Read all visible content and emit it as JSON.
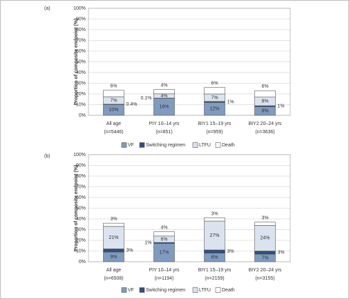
{
  "chart_data": [
    {
      "type": "bar",
      "stacked": true,
      "panel_label": "(a)",
      "ylabel": "Proportion of composite endpoint (%)",
      "categories": [
        [
          "All age",
          "(n=5446)"
        ],
        [
          "PIY 10–14 yrs",
          "(n=851)"
        ],
        [
          "BIY1 15–19 yrs",
          "(n=959)"
        ],
        [
          "BIY2  20–24 yrs",
          "(n=3636)"
        ]
      ],
      "series": [
        {
          "name": "VF",
          "color": "#7f9bbf",
          "values": [
            10,
            16,
            12,
            8
          ],
          "value_labels": [
            "10%",
            "16%",
            "12%",
            "8%"
          ]
        },
        {
          "name": "Switching regimen",
          "color": "#2f4f7f",
          "values": [
            0.4,
            0.1,
            1,
            1
          ],
          "value_labels": [
            "0.4%",
            "0.1%",
            "1%",
            "1%"
          ]
        },
        {
          "name": "LTFU",
          "color": "#dbe3ef",
          "values": [
            7,
            4,
            7,
            8
          ],
          "value_labels": [
            "7%",
            "4%",
            "7%",
            "8%"
          ]
        },
        {
          "name": "Death",
          "color": "#ffffff",
          "values": [
            6,
            4,
            6,
            6
          ],
          "value_labels": [
            "6%",
            "4%",
            "6%",
            "6%"
          ]
        }
      ],
      "ylim": [
        0,
        100
      ],
      "yticks": [
        {
          "value": 0,
          "label": "0%"
        },
        {
          "value": 10,
          "label": "10%"
        },
        {
          "value": 20,
          "label": "20%"
        },
        {
          "value": 30,
          "label": "30%"
        },
        {
          "value": 40,
          "label": "40%"
        },
        {
          "value": 50,
          "label": "50%"
        },
        {
          "value": 60,
          "label": "60%"
        },
        {
          "value": 70,
          "label": "70%"
        },
        {
          "value": 80,
          "label": "80%"
        },
        {
          "value": 90,
          "label": "90%"
        },
        {
          "value": 100,
          "label": "100%"
        }
      ],
      "grid": true
    },
    {
      "type": "bar",
      "stacked": true,
      "panel_label": "(b)",
      "ylabel": "Proportion of composite endpoint (%)",
      "categories": [
        [
          "All age",
          "(n=6508)"
        ],
        [
          "PIY 10–14 yrs",
          "(n=1194)"
        ],
        [
          "BIY1 15–19 yrs",
          "(n=2159)"
        ],
        [
          "BIY2  20–24 yrs",
          "(n=3155)"
        ]
      ],
      "series": [
        {
          "name": "VF",
          "color": "#7f9bbf",
          "values": [
            9,
            17,
            8,
            7
          ],
          "value_labels": [
            "9%",
            "17%",
            "8%",
            "7%"
          ]
        },
        {
          "name": "Switching regimen",
          "color": "#2f4f7f",
          "values": [
            3,
            1,
            3,
            3
          ],
          "value_labels": [
            "3%",
            "1%",
            "3%",
            "3%"
          ]
        },
        {
          "name": "LTFU",
          "color": "#dbe3ef",
          "values": [
            21,
            6,
            27,
            24
          ],
          "value_labels": [
            "21%",
            "6%",
            "27%",
            "24%"
          ]
        },
        {
          "name": "Death",
          "color": "#ffffff",
          "values": [
            3,
            4,
            3,
            3
          ],
          "value_labels": [
            "3%",
            "4%",
            "3%",
            "3%"
          ]
        }
      ],
      "ylim": [
        0,
        100
      ],
      "yticks": [
        {
          "value": 0,
          "label": "0%"
        },
        {
          "value": 10,
          "label": "10%"
        },
        {
          "value": 20,
          "label": "20%"
        },
        {
          "value": 30,
          "label": "30%"
        },
        {
          "value": 40,
          "label": "40%"
        },
        {
          "value": 50,
          "label": "50%"
        },
        {
          "value": 60,
          "label": "60%"
        },
        {
          "value": 70,
          "label": "70%"
        },
        {
          "value": 80,
          "label": "80%"
        },
        {
          "value": 90,
          "label": "90%"
        },
        {
          "value": 100,
          "label": "100%"
        }
      ],
      "grid": true
    }
  ]
}
